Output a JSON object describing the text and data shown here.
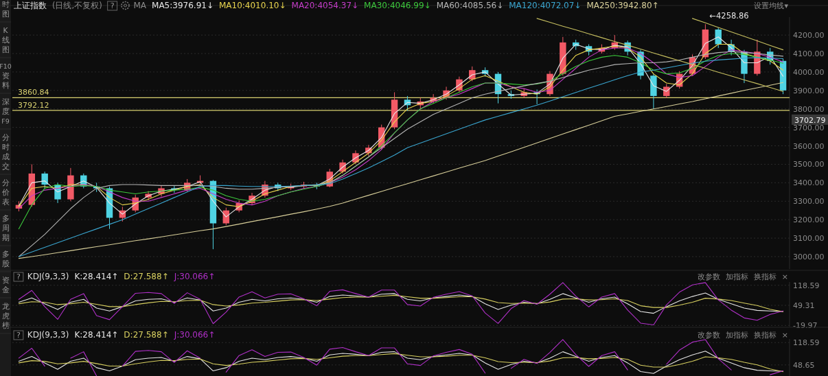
{
  "chart_data": [
    {
      "type": "other",
      "annotations": [
        "时图",
        "K线图",
        "F10资料",
        "深度F9",
        "分时成交",
        "分价表",
        "多周期",
        "多股",
        "资金",
        "龙虎榜"
      ]
    },
    {
      "type": "candlestick",
      "title": "上证指数",
      "subtitle": "(日线,不复权)",
      "legend_title": "MA",
      "legend": "top left",
      "tick_labels": "y",
      "grid": "y",
      "categories": [
        null,
        null,
        null,
        null,
        null,
        null,
        null,
        null,
        null,
        null,
        null,
        null,
        null,
        null,
        null,
        null,
        null,
        null,
        null,
        null,
        null,
        null,
        null,
        null,
        null,
        null,
        null,
        null,
        null,
        null,
        null,
        null,
        null,
        null,
        null,
        null,
        null,
        null,
        null,
        null,
        null,
        null,
        null,
        null,
        null,
        null,
        null,
        null,
        null,
        null,
        null,
        null,
        null,
        null,
        null,
        null,
        null,
        null,
        null,
        null
      ],
      "ohlc": [
        [
          3260,
          3300,
          3245,
          3280
        ],
        [
          3280,
          3500,
          3270,
          3450
        ],
        [
          3450,
          3460,
          3370,
          3390
        ],
        [
          3390,
          3400,
          3290,
          3310
        ],
        [
          3310,
          3480,
          3300,
          3440
        ],
        [
          3440,
          3450,
          3370,
          3380
        ],
        [
          3380,
          3400,
          3350,
          3370
        ],
        [
          3370,
          3380,
          3150,
          3210
        ],
        [
          3210,
          3270,
          3190,
          3250
        ],
        [
          3250,
          3335,
          3240,
          3320
        ],
        [
          3320,
          3355,
          3305,
          3340
        ],
        [
          3340,
          3385,
          3325,
          3370
        ],
        [
          3370,
          3385,
          3345,
          3360
        ],
        [
          3360,
          3420,
          3350,
          3400
        ],
        [
          3400,
          3440,
          3390,
          3410
        ],
        [
          3410,
          3415,
          3040,
          3180
        ],
        [
          3180,
          3265,
          3170,
          3250
        ],
        [
          3250,
          3305,
          3240,
          3290
        ],
        [
          3290,
          3345,
          3280,
          3330
        ],
        [
          3330,
          3410,
          3320,
          3390
        ],
        [
          3390,
          3400,
          3355,
          3370
        ],
        [
          3370,
          3395,
          3360,
          3380
        ],
        [
          3380,
          3405,
          3370,
          3390
        ],
        [
          3390,
          3400,
          3365,
          3380
        ],
        [
          3380,
          3475,
          3375,
          3460
        ],
        [
          3460,
          3525,
          3450,
          3510
        ],
        [
          3510,
          3575,
          3500,
          3560
        ],
        [
          3560,
          3605,
          3545,
          3590
        ],
        [
          3590,
          3715,
          3580,
          3700
        ],
        [
          3700,
          3890,
          3690,
          3850
        ],
        [
          3850,
          3870,
          3790,
          3820
        ],
        [
          3820,
          3860,
          3800,
          3840
        ],
        [
          3840,
          3880,
          3830,
          3860
        ],
        [
          3860,
          3920,
          3850,
          3900
        ],
        [
          3900,
          3975,
          3890,
          3960
        ],
        [
          3960,
          4030,
          3950,
          4010
        ],
        [
          4010,
          4025,
          3975,
          3990
        ],
        [
          3990,
          4000,
          3830,
          3880
        ],
        [
          3880,
          3900,
          3855,
          3870
        ],
        [
          3870,
          3910,
          3860,
          3890
        ],
        [
          3890,
          3905,
          3825,
          3880
        ],
        [
          3880,
          4005,
          3870,
          3990
        ],
        [
          3990,
          4190,
          3980,
          4160
        ],
        [
          4160,
          4175,
          4120,
          4140
        ],
        [
          4140,
          4150,
          4090,
          4110
        ],
        [
          4110,
          4150,
          4100,
          4130
        ],
        [
          4130,
          4200,
          4120,
          4160
        ],
        [
          4160,
          4170,
          4090,
          4110
        ],
        [
          4110,
          4120,
          3960,
          3980
        ],
        [
          3980,
          3990,
          3800,
          3870
        ],
        [
          3870,
          3935,
          3860,
          3920
        ],
        [
          3920,
          4005,
          3910,
          3990
        ],
        [
          3990,
          4095,
          3980,
          4080
        ],
        [
          4080,
          4258.86,
          4070,
          4230
        ],
        [
          4230,
          4240,
          4130,
          4150
        ],
        [
          4150,
          4175,
          4090,
          4110
        ],
        [
          4110,
          4120,
          3940,
          3990
        ],
        [
          3990,
          4175,
          3980,
          4110
        ],
        [
          4110,
          4130,
          4040,
          4060
        ],
        [
          4060,
          4070,
          3880,
          3900
        ]
      ],
      "series": [
        {
          "type": "line",
          "name": "MA5:3976.91↓",
          "color": "#e6e6e6",
          "values": [
            3275,
            3400,
            3410,
            3350,
            3380,
            3410,
            3375,
            3290,
            3230,
            3285,
            3330,
            3355,
            3365,
            3380,
            3405,
            3300,
            3215,
            3270,
            3310,
            3360,
            3380,
            3375,
            3385,
            3385,
            3420,
            3485,
            3535,
            3575,
            3645,
            3775,
            3835,
            3830,
            3850,
            3880,
            3930,
            3985,
            4000,
            3935,
            3875,
            3880,
            3885,
            3935,
            4075,
            4150,
            4125,
            4120,
            4145,
            4135,
            4045,
            3925,
            3895,
            3955,
            4035,
            4155,
            4190,
            4130,
            4050,
            4050,
            4085,
            3976.91
          ]
        },
        {
          "type": "line",
          "name": "MA10:4010.10↓",
          "color": "#e8d44d",
          "values": [
            3270,
            3370,
            3380,
            3370,
            3390,
            3390,
            3380,
            3320,
            3280,
            3290,
            3310,
            3340,
            3360,
            3380,
            3390,
            3320,
            3280,
            3270,
            3300,
            3340,
            3360,
            3380,
            3385,
            3385,
            3410,
            3460,
            3510,
            3560,
            3630,
            3730,
            3800,
            3830,
            3840,
            3870,
            3910,
            3960,
            3980,
            3950,
            3920,
            3890,
            3880,
            3920,
            4010,
            4090,
            4120,
            4130,
            4140,
            4130,
            4080,
            3990,
            3940,
            3930,
            3990,
            4100,
            4150,
            4150,
            4100,
            4080,
            4060,
            4010.1
          ]
        },
        {
          "type": "line",
          "name": "MA20:4054.37↓",
          "color": "#c43cc8",
          "values": [
            3260,
            3330,
            3360,
            3370,
            3380,
            3390,
            3380,
            3350,
            3320,
            3300,
            3300,
            3320,
            3340,
            3360,
            3370,
            3340,
            3310,
            3290,
            3280,
            3300,
            3330,
            3350,
            3370,
            3380,
            3400,
            3430,
            3470,
            3520,
            3580,
            3670,
            3740,
            3800,
            3840,
            3860,
            3880,
            3910,
            3940,
            3940,
            3920,
            3910,
            3890,
            3900,
            3960,
            4020,
            4080,
            4120,
            4130,
            4130,
            4100,
            4050,
            3990,
            3970,
            3980,
            4030,
            4080,
            4120,
            4110,
            4100,
            4080,
            4054.37
          ]
        },
        {
          "type": "line",
          "name": "MA30:4046.99↓",
          "color": "#3cc83c",
          "values": [
            3150,
            3280,
            3370,
            3390,
            3380,
            3385,
            3380,
            3360,
            3350,
            3340,
            3350,
            3355,
            3360,
            3365,
            3375,
            3360,
            3330,
            3310,
            3300,
            3310,
            3330,
            3350,
            3365,
            3380,
            3400,
            3440,
            3490,
            3540,
            3600,
            3670,
            3740,
            3800,
            3830,
            3860,
            3890,
            3920,
            3940,
            3940,
            3935,
            3930,
            3935,
            3950,
            3990,
            4030,
            4060,
            4080,
            4090,
            4080,
            4050,
            4010,
            3990,
            3995,
            4020,
            4060,
            4090,
            4100,
            4095,
            4080,
            4065,
            4046.99
          ]
        },
        {
          "type": "line",
          "name": "MA60:4085.56↓",
          "color": "#b4b4b4",
          "values": [
            3000,
            3060,
            3120,
            3190,
            3260,
            3320,
            3370,
            3385,
            3390,
            3390,
            3388,
            3385,
            3385,
            3385,
            3385,
            3380,
            3370,
            3365,
            3365,
            3370,
            3375,
            3380,
            3385,
            3390,
            3400,
            3440,
            3490,
            3540,
            3590,
            3640,
            3690,
            3730,
            3770,
            3800,
            3830,
            3860,
            3880,
            3895,
            3910,
            3925,
            3938,
            3950,
            3970,
            3990,
            4010,
            4025,
            4040,
            4045,
            4050,
            4050,
            4055,
            4065,
            4080,
            4095,
            4105,
            4110,
            4105,
            4100,
            4092,
            4085.56
          ]
        },
        {
          "type": "line",
          "name": "MA120:4072.07↓",
          "color": "#3aa6d0",
          "values": [
            3000,
            3025,
            3050,
            3075,
            3100,
            3125,
            3150,
            3175,
            3200,
            3230,
            3260,
            3290,
            3320,
            3350,
            3380,
            3385,
            3385,
            3382,
            3380,
            3380,
            3380,
            3382,
            3385,
            3388,
            3395,
            3420,
            3450,
            3480,
            3515,
            3550,
            3590,
            3615,
            3640,
            3665,
            3690,
            3715,
            3740,
            3760,
            3780,
            3800,
            3820,
            3843,
            3866,
            3889,
            3912,
            3935,
            3958,
            3980,
            4000,
            4010,
            4022,
            4035,
            4048,
            4058,
            4065,
            4070,
            4075,
            4078,
            4075,
            4072.07
          ]
        },
        {
          "type": "line",
          "name": "MA250:3942.80↑",
          "color": "#d8cf9a",
          "values": [
            2990,
            3000,
            3010,
            3021,
            3032,
            3043,
            3054,
            3064,
            3075,
            3086,
            3096,
            3107,
            3118,
            3129,
            3140,
            3150,
            3163,
            3176,
            3190,
            3203,
            3216,
            3230,
            3243,
            3257,
            3272,
            3290,
            3311,
            3332,
            3353,
            3374,
            3395,
            3416,
            3437,
            3458,
            3479,
            3500,
            3520,
            3544,
            3568,
            3592,
            3616,
            3640,
            3664,
            3688,
            3712,
            3736,
            3760,
            3773,
            3787,
            3800,
            3813,
            3827,
            3840,
            3855,
            3870,
            3885,
            3900,
            3914,
            3928,
            3942.8
          ]
        },
        {
          "type": "line",
          "color": "#c8c060",
          "values": [
            null,
            null,
            null,
            null,
            null,
            null,
            null,
            null,
            null,
            null,
            null,
            null,
            null,
            null,
            null,
            null,
            null,
            null,
            null,
            null,
            null,
            null,
            null,
            null,
            null,
            null,
            null,
            null,
            null,
            null,
            null,
            null,
            null,
            null,
            null,
            null,
            null,
            null,
            null,
            null,
            4290,
            4269,
            4248,
            4228,
            4207,
            4186,
            4165,
            4145,
            4124,
            4103,
            4082,
            4061,
            4041,
            4020,
            3999,
            3978,
            3957,
            3937,
            3916,
            3895
          ]
        },
        {
          "type": "line",
          "color": "#c8c060",
          "values": [
            null,
            null,
            null,
            null,
            null,
            null,
            null,
            null,
            null,
            null,
            null,
            null,
            null,
            null,
            null,
            null,
            null,
            null,
            null,
            null,
            null,
            null,
            null,
            null,
            null,
            null,
            null,
            null,
            null,
            null,
            null,
            null,
            null,
            null,
            null,
            null,
            null,
            null,
            null,
            null,
            null,
            null,
            null,
            null,
            null,
            null,
            null,
            null,
            null,
            null,
            null,
            null,
            4290,
            4266,
            4241,
            4217,
            4193,
            4169,
            4144,
            4120
          ]
        }
      ],
      "ylim": [
        2933,
        4297
      ],
      "yticks": [
        {
          "value": 3000,
          "label": "3000.00"
        },
        {
          "value": 3100,
          "label": "3100.00"
        },
        {
          "value": 3200,
          "label": "3200.00"
        },
        {
          "value": 3300,
          "label": "3300.00"
        },
        {
          "value": 3400,
          "label": "3400.00"
        },
        {
          "value": 3500,
          "label": "3500.00"
        },
        {
          "value": 3600,
          "label": "3600.00"
        },
        {
          "value": 3700,
          "label": "3700.00"
        },
        {
          "value": 3800,
          "label": "3800.00"
        },
        {
          "value": 3900,
          "label": "3900.00"
        },
        {
          "value": 4000,
          "label": "4000.00"
        },
        {
          "value": 4100,
          "label": "4100.00"
        },
        {
          "value": 4200,
          "label": "4200.00"
        }
      ],
      "ref_lines": [
        {
          "axis": "y",
          "value": 3860.84,
          "label": "3860.84",
          "color": "#d8d070"
        },
        {
          "axis": "y",
          "value": 3792.12,
          "label": "3792.12",
          "color": "#d8d070"
        }
      ],
      "annotations": [
        "?",
        "设置均线▾",
        "←4258.86",
        "3702.79"
      ]
    },
    {
      "type": "line",
      "title": "KDJ(9,3,3)",
      "legend": "top left",
      "tick_labels": "y",
      "grid": "y",
      "categories": [
        null,
        null,
        null,
        null,
        null,
        null,
        null,
        null,
        null,
        null,
        null,
        null,
        null,
        null,
        null,
        null,
        null,
        null,
        null,
        null,
        null,
        null,
        null,
        null,
        null,
        null,
        null,
        null,
        null,
        null,
        null,
        null,
        null,
        null,
        null,
        null,
        null,
        null,
        null,
        null,
        null,
        null,
        null,
        null,
        null,
        null,
        null,
        null,
        null,
        null,
        null,
        null,
        null,
        null,
        null,
        null,
        null,
        null,
        null,
        null
      ],
      "series": [
        {
          "name": "K:28.414↑",
          "color": "#e6e6e6",
          "values": [
            60,
            75,
            55,
            35,
            60,
            70,
            40,
            30,
            45,
            65,
            70,
            72,
            60,
            75,
            68,
            30,
            40,
            60,
            70,
            65,
            72,
            75,
            70,
            60,
            80,
            85,
            82,
            78,
            88,
            90,
            70,
            65,
            75,
            80,
            85,
            80,
            55,
            35,
            50,
            60,
            55,
            70,
            90,
            75,
            60,
            72,
            78,
            55,
            28,
            22,
            45,
            65,
            80,
            92,
            70,
            55,
            40,
            32,
            30,
            28.414
          ]
        },
        {
          "name": "D:27.588↑",
          "color": "#d8d060",
          "values": [
            55,
            62,
            60,
            52,
            55,
            60,
            53,
            45,
            45,
            52,
            58,
            63,
            62,
            66,
            67,
            52,
            47,
            51,
            57,
            60,
            64,
            68,
            69,
            66,
            71,
            76,
            78,
            78,
            81,
            84,
            79,
            74,
            74,
            76,
            79,
            79,
            71,
            59,
            56,
            57,
            56,
            61,
            71,
            72,
            68,
            69,
            72,
            66,
            48,
            42,
            42,
            50,
            60,
            74,
            71,
            66,
            57,
            49,
            36,
            27.588
          ]
        },
        {
          "name": "J:30.066↑",
          "color": "#b030c8",
          "values": [
            70,
            101,
            45,
            1,
            70,
            90,
            14,
            0,
            45,
            91,
            94,
            90,
            56,
            93,
            70,
            -14,
            26,
            78,
            96,
            75,
            88,
            89,
            72,
            48,
            98,
            103,
            90,
            78,
            102,
            102,
            52,
            47,
            77,
            88,
            97,
            82,
            23,
            -13,
            38,
            66,
            53,
            88,
            128,
            81,
            44,
            78,
            90,
            33,
            -12,
            -18,
            51,
            95,
            120,
            128,
            68,
            33,
            6,
            -2,
            18,
            30.066
          ]
        }
      ],
      "ylim": [
        -24,
        130
      ],
      "yticks": [
        118.59,
        49.31,
        -19.97
      ],
      "annotations": [
        "?",
        "改参数",
        "加指标",
        "换指标",
        "×"
      ]
    },
    {
      "type": "line",
      "title": "KDJ(9,3,3)",
      "legend": "top left",
      "tick_labels": "y",
      "grid": "y",
      "categories": [
        null,
        null,
        null,
        null,
        null,
        null,
        null,
        null,
        null,
        null,
        null,
        null,
        null,
        null,
        null,
        null,
        null,
        null,
        null,
        null,
        null,
        null,
        null,
        null,
        null,
        null,
        null,
        null,
        null,
        null,
        null,
        null,
        null,
        null,
        null,
        null,
        null,
        null,
        null,
        null,
        null,
        null,
        null,
        null,
        null,
        null,
        null,
        null,
        null,
        null,
        null,
        null,
        null,
        null,
        null,
        null,
        null,
        null,
        null,
        null
      ],
      "series": [
        {
          "name": "K:28.414↑",
          "color": "#e6e6e6",
          "values": [
            60,
            75,
            55,
            35,
            60,
            70,
            40,
            30,
            45,
            65,
            70,
            72,
            60,
            75,
            68,
            30,
            40,
            60,
            70,
            65,
            72,
            75,
            70,
            60,
            80,
            85,
            82,
            78,
            88,
            90,
            70,
            65,
            75,
            80,
            85,
            80,
            55,
            35,
            50,
            60,
            55,
            70,
            90,
            75,
            60,
            72,
            78,
            55,
            28,
            22,
            45,
            65,
            80,
            92,
            70,
            55,
            40,
            32,
            30,
            28.414
          ]
        },
        {
          "name": "D:27.588↑",
          "color": "#d8d060",
          "values": [
            55,
            62,
            60,
            52,
            55,
            60,
            53,
            45,
            45,
            52,
            58,
            63,
            62,
            66,
            67,
            52,
            47,
            51,
            57,
            60,
            64,
            68,
            69,
            66,
            71,
            76,
            78,
            78,
            81,
            84,
            79,
            74,
            74,
            76,
            79,
            79,
            71,
            59,
            56,
            57,
            56,
            61,
            71,
            72,
            68,
            69,
            72,
            66,
            48,
            42,
            42,
            50,
            60,
            74,
            71,
            66,
            57,
            49,
            36,
            27.588
          ]
        },
        {
          "name": "J:30.066↑",
          "color": "#b030c8",
          "values": [
            70,
            101,
            45,
            null,
            70,
            90,
            14,
            null,
            45,
            91,
            94,
            90,
            56,
            93,
            70,
            null,
            26,
            78,
            96,
            75,
            88,
            89,
            72,
            48,
            98,
            103,
            90,
            78,
            102,
            102,
            52,
            47,
            77,
            88,
            97,
            82,
            23,
            null,
            38,
            66,
            53,
            88,
            128,
            81,
            44,
            78,
            90,
            33,
            null,
            null,
            51,
            95,
            120,
            128,
            68,
            33,
            null,
            null,
            18,
            30.066
          ]
        }
      ],
      "ylim": [
        14,
        130
      ],
      "yticks": [
        118.59,
        48.65
      ],
      "annotations": [
        "?",
        "改参数",
        "加指标",
        "换指标",
        "×"
      ]
    }
  ]
}
